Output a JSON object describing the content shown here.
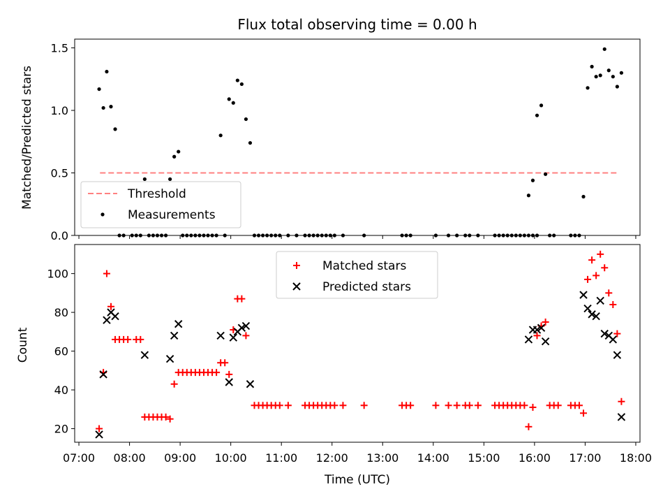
{
  "title": "Flux total observing time = 0.00 h",
  "colors": {
    "threshold": "#ff8080",
    "measurement": "#000000",
    "matched": "#ff0000",
    "predicted": "#000000"
  },
  "chart_data": [
    {
      "type": "scatter",
      "name": "ratio-panel",
      "xlabel": "",
      "ylabel": "Matched/Predicted stars",
      "xlim": [
        "06:55",
        "18:05"
      ],
      "ylim": [
        0,
        1.57
      ],
      "yticks": [
        "0.0",
        "0.5",
        "1.0",
        "1.5"
      ],
      "legend": {
        "placement": "lower-left",
        "entries": [
          "Threshold",
          "Measurements"
        ]
      },
      "threshold": {
        "name": "Threshold",
        "value": 0.5,
        "x_range": [
          "07:25",
          "17:40"
        ]
      },
      "series": [
        {
          "name": "Measurements",
          "points": [
            [
              "07:24",
              1.17
            ],
            [
              "07:29",
              1.02
            ],
            [
              "07:33",
              1.31
            ],
            [
              "07:38",
              1.03
            ],
            [
              "07:43",
              0.85
            ],
            [
              "07:48",
              0
            ],
            [
              "07:53",
              0
            ],
            [
              "08:03",
              0
            ],
            [
              "08:08",
              0
            ],
            [
              "08:13",
              0
            ],
            [
              "08:18",
              0.45
            ],
            [
              "08:23",
              0
            ],
            [
              "08:28",
              0
            ],
            [
              "08:33",
              0
            ],
            [
              "08:38",
              0
            ],
            [
              "08:43",
              0
            ],
            [
              "08:48",
              0.45
            ],
            [
              "08:53",
              0.63
            ],
            [
              "08:58",
              0.67
            ],
            [
              "09:03",
              0
            ],
            [
              "09:08",
              0
            ],
            [
              "09:13",
              0
            ],
            [
              "09:18",
              0
            ],
            [
              "09:23",
              0
            ],
            [
              "09:28",
              0
            ],
            [
              "09:33",
              0
            ],
            [
              "09:38",
              0
            ],
            [
              "09:43",
              0
            ],
            [
              "09:48",
              0.8
            ],
            [
              "09:53",
              0
            ],
            [
              "09:58",
              1.09
            ],
            [
              "10:03",
              1.06
            ],
            [
              "10:08",
              1.24
            ],
            [
              "10:13",
              1.21
            ],
            [
              "10:18",
              0.93
            ],
            [
              "10:23",
              0.74
            ],
            [
              "10:28",
              0
            ],
            [
              "10:33",
              0
            ],
            [
              "10:38",
              0
            ],
            [
              "10:43",
              0
            ],
            [
              "10:48",
              0
            ],
            [
              "10:53",
              0
            ],
            [
              "10:58",
              0
            ],
            [
              "11:08",
              0
            ],
            [
              "11:18",
              0
            ],
            [
              "11:28",
              0
            ],
            [
              "11:33",
              0
            ],
            [
              "11:38",
              0
            ],
            [
              "11:43",
              0
            ],
            [
              "11:48",
              0
            ],
            [
              "11:53",
              0
            ],
            [
              "11:58",
              0
            ],
            [
              "12:03",
              0
            ],
            [
              "12:13",
              0
            ],
            [
              "12:38",
              0
            ],
            [
              "13:23",
              0
            ],
            [
              "13:28",
              0
            ],
            [
              "13:33",
              0
            ],
            [
              "14:03",
              0
            ],
            [
              "14:18",
              0
            ],
            [
              "14:28",
              0
            ],
            [
              "14:38",
              0
            ],
            [
              "14:43",
              0
            ],
            [
              "14:53",
              0
            ],
            [
              "15:13",
              0
            ],
            [
              "15:18",
              0
            ],
            [
              "15:23",
              0
            ],
            [
              "15:28",
              0
            ],
            [
              "15:33",
              0
            ],
            [
              "15:38",
              0
            ],
            [
              "15:43",
              0
            ],
            [
              "15:48",
              0
            ],
            [
              "15:53",
              0
            ],
            [
              "15:58",
              0
            ],
            [
              "16:03",
              0
            ],
            [
              "15:53",
              0.32
            ],
            [
              "15:58",
              0.44
            ],
            [
              "16:03",
              0.96
            ],
            [
              "16:08",
              1.04
            ],
            [
              "16:13",
              0.49
            ],
            [
              "16:18",
              0
            ],
            [
              "16:23",
              0
            ],
            [
              "16:43",
              0
            ],
            [
              "16:48",
              0
            ],
            [
              "16:53",
              0
            ],
            [
              "16:58",
              0.31
            ],
            [
              "17:03",
              1.18
            ],
            [
              "17:08",
              1.35
            ],
            [
              "17:13",
              1.27
            ],
            [
              "17:18",
              1.28
            ],
            [
              "17:23",
              1.49
            ],
            [
              "17:28",
              1.32
            ],
            [
              "17:33",
              1.27
            ],
            [
              "17:38",
              1.19
            ],
            [
              "17:43",
              1.3
            ]
          ]
        }
      ]
    },
    {
      "type": "scatter",
      "name": "count-panel",
      "xlabel": "Time (UTC)",
      "ylabel": "Count",
      "xlim": [
        "06:55",
        "18:05"
      ],
      "ylim": [
        13,
        115
      ],
      "yticks": [
        "20",
        "40",
        "60",
        "80",
        "100"
      ],
      "xticks": [
        "07:00",
        "08:00",
        "09:00",
        "10:00",
        "11:00",
        "12:00",
        "13:00",
        "14:00",
        "15:00",
        "16:00",
        "17:00",
        "18:00"
      ],
      "legend": {
        "placement": "upper-center",
        "entries": [
          "Matched stars",
          "Predicted stars"
        ]
      },
      "series": [
        {
          "name": "Matched stars",
          "marker": "plus",
          "points": [
            [
              "07:24",
              20
            ],
            [
              "07:29",
              49
            ],
            [
              "07:33",
              100
            ],
            [
              "07:38",
              83
            ],
            [
              "07:43",
              66
            ],
            [
              "07:48",
              66
            ],
            [
              "07:53",
              66
            ],
            [
              "07:58",
              66
            ],
            [
              "08:08",
              66
            ],
            [
              "08:13",
              66
            ],
            [
              "08:18",
              26
            ],
            [
              "08:23",
              26
            ],
            [
              "08:28",
              26
            ],
            [
              "08:33",
              26
            ],
            [
              "08:38",
              26
            ],
            [
              "08:43",
              26
            ],
            [
              "08:48",
              25
            ],
            [
              "08:53",
              43
            ],
            [
              "08:58",
              49
            ],
            [
              "09:03",
              49
            ],
            [
              "09:08",
              49
            ],
            [
              "09:13",
              49
            ],
            [
              "09:18",
              49
            ],
            [
              "09:23",
              49
            ],
            [
              "09:28",
              49
            ],
            [
              "09:33",
              49
            ],
            [
              "09:38",
              49
            ],
            [
              "09:43",
              49
            ],
            [
              "09:48",
              54
            ],
            [
              "09:53",
              54
            ],
            [
              "09:58",
              48
            ],
            [
              "10:03",
              71
            ],
            [
              "10:08",
              87
            ],
            [
              "10:13",
              87
            ],
            [
              "10:18",
              68
            ],
            [
              "10:28",
              32
            ],
            [
              "10:33",
              32
            ],
            [
              "10:38",
              32
            ],
            [
              "10:43",
              32
            ],
            [
              "10:48",
              32
            ],
            [
              "10:53",
              32
            ],
            [
              "10:58",
              32
            ],
            [
              "11:08",
              32
            ],
            [
              "11:28",
              32
            ],
            [
              "11:33",
              32
            ],
            [
              "11:38",
              32
            ],
            [
              "11:43",
              32
            ],
            [
              "11:48",
              32
            ],
            [
              "11:53",
              32
            ],
            [
              "11:58",
              32
            ],
            [
              "12:03",
              32
            ],
            [
              "12:13",
              32
            ],
            [
              "12:38",
              32
            ],
            [
              "13:23",
              32
            ],
            [
              "13:28",
              32
            ],
            [
              "13:33",
              32
            ],
            [
              "14:03",
              32
            ],
            [
              "14:18",
              32
            ],
            [
              "14:28",
              32
            ],
            [
              "14:38",
              32
            ],
            [
              "14:43",
              32
            ],
            [
              "14:53",
              32
            ],
            [
              "15:13",
              32
            ],
            [
              "15:18",
              32
            ],
            [
              "15:23",
              32
            ],
            [
              "15:28",
              32
            ],
            [
              "15:33",
              32
            ],
            [
              "15:38",
              32
            ],
            [
              "15:43",
              32
            ],
            [
              "15:48",
              32
            ],
            [
              "15:53",
              21
            ],
            [
              "15:58",
              31
            ],
            [
              "16:03",
              68
            ],
            [
              "16:08",
              73
            ],
            [
              "16:13",
              75
            ],
            [
              "16:18",
              32
            ],
            [
              "16:23",
              32
            ],
            [
              "16:28",
              32
            ],
            [
              "16:43",
              32
            ],
            [
              "16:48",
              32
            ],
            [
              "16:53",
              32
            ],
            [
              "16:58",
              28
            ],
            [
              "17:03",
              97
            ],
            [
              "17:08",
              107
            ],
            [
              "17:13",
              99
            ],
            [
              "17:18",
              110
            ],
            [
              "17:23",
              103
            ],
            [
              "17:28",
              90
            ],
            [
              "17:33",
              84
            ],
            [
              "17:38",
              69
            ],
            [
              "17:43",
              34
            ]
          ]
        },
        {
          "name": "Predicted stars",
          "marker": "x",
          "points": [
            [
              "07:24",
              17
            ],
            [
              "07:29",
              48
            ],
            [
              "07:33",
              76
            ],
            [
              "07:38",
              80
            ],
            [
              "07:43",
              78
            ],
            [
              "08:18",
              58
            ],
            [
              "08:48",
              56
            ],
            [
              "08:53",
              68
            ],
            [
              "08:58",
              74
            ],
            [
              "09:48",
              68
            ],
            [
              "09:58",
              44
            ],
            [
              "10:03",
              67
            ],
            [
              "10:08",
              70
            ],
            [
              "10:13",
              72
            ],
            [
              "10:18",
              73
            ],
            [
              "10:23",
              43
            ],
            [
              "15:53",
              66
            ],
            [
              "15:58",
              71
            ],
            [
              "16:03",
              71
            ],
            [
              "16:08",
              72
            ],
            [
              "16:13",
              65
            ],
            [
              "16:58",
              89
            ],
            [
              "17:03",
              82
            ],
            [
              "17:08",
              79
            ],
            [
              "17:13",
              78
            ],
            [
              "17:18",
              86
            ],
            [
              "17:23",
              69
            ],
            [
              "17:28",
              68
            ],
            [
              "17:33",
              66
            ],
            [
              "17:38",
              58
            ],
            [
              "17:43",
              26
            ]
          ]
        }
      ]
    }
  ]
}
